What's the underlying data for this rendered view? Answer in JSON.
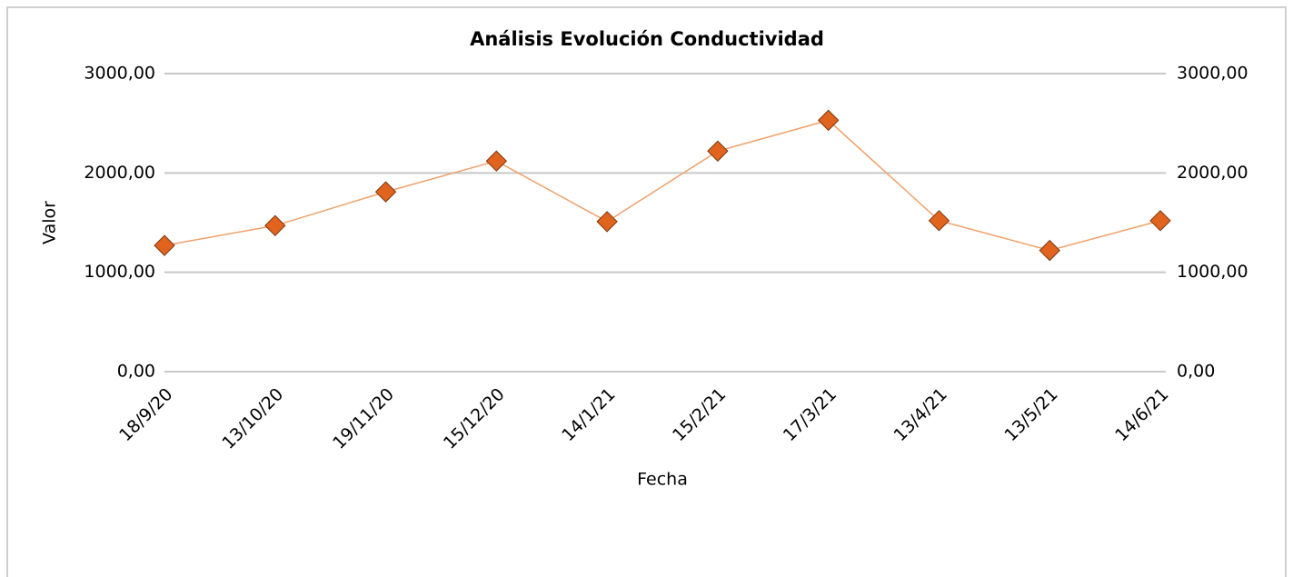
{
  "chart_data": {
    "type": "line",
    "title": "Análisis Evolución Conductividad",
    "x_label": "Fecha",
    "y_label": "Valor",
    "categories": [
      "18/9/20",
      "13/10/20",
      "19/11/20",
      "15/12/20",
      "14/1/21",
      "15/2/21",
      "17/3/21",
      "13/4/21",
      "13/5/21",
      "14/6/21"
    ],
    "series": [
      {
        "name": "Conductividad",
        "color": "#e0631e",
        "values": [
          1270,
          1470,
          1810,
          2120,
          1510,
          2220,
          2530,
          1520,
          1220,
          1520
        ]
      }
    ],
    "ylim": [
      0,
      3000
    ],
    "yticks": [
      {
        "value": 0,
        "label": "0,00"
      },
      {
        "value": 1000,
        "label": "1000,00"
      },
      {
        "value": 2000,
        "label": "2000,00"
      },
      {
        "value": 3000,
        "label": "3000,00"
      }
    ],
    "y2lim": [
      0,
      3000
    ],
    "y2ticks": [
      {
        "value": 0,
        "label": "0,00"
      },
      {
        "value": 1000,
        "label": "1000,00"
      },
      {
        "value": 2000,
        "label": "2000,00"
      },
      {
        "value": 3000,
        "label": "3000,00"
      }
    ],
    "grid": true
  }
}
